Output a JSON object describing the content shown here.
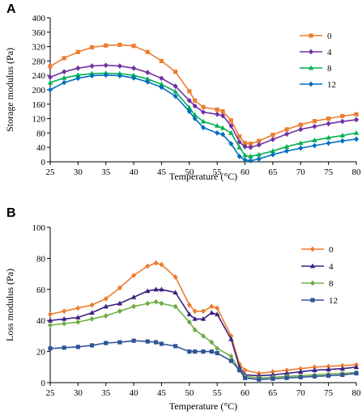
{
  "chart_data": [
    {
      "panel": "A",
      "type": "line",
      "xlabel": "Temperature (°C)",
      "ylabel": "Storage modulus (Pa)",
      "xlim": [
        25,
        80
      ],
      "ylim": [
        0,
        400
      ],
      "xticks": [
        "25",
        "30",
        "35",
        "40",
        "45",
        "50",
        "55",
        "60",
        "65",
        "70",
        "75",
        "80"
      ],
      "yticks": [
        "0",
        "40",
        "80",
        "120",
        "160",
        "200",
        "240",
        "280",
        "320",
        "360",
        "400"
      ],
      "grid": false,
      "legend": "top-right",
      "x": [
        25,
        27.5,
        30,
        32.5,
        35,
        37.5,
        40,
        42.5,
        45,
        47.5,
        50,
        51,
        52.5,
        55,
        56,
        57.5,
        59,
        60,
        61,
        62.5,
        65,
        67.5,
        70,
        72.5,
        75,
        77.5,
        80
      ],
      "series": [
        {
          "name": "0",
          "color": "#ED7D31",
          "marker": "square",
          "values": [
            265,
            288,
            305,
            318,
            323,
            325,
            322,
            305,
            280,
            250,
            196,
            170,
            152,
            145,
            140,
            115,
            70,
            52,
            50,
            58,
            75,
            90,
            103,
            113,
            120,
            127,
            132
          ]
        },
        {
          "name": "4",
          "color": "#7030A0",
          "marker": "diamond",
          "values": [
            235,
            250,
            260,
            266,
            268,
            266,
            260,
            248,
            232,
            210,
            170,
            155,
            138,
            132,
            128,
            100,
            55,
            42,
            40,
            47,
            62,
            77,
            90,
            98,
            106,
            112,
            117
          ]
        },
        {
          "name": "8",
          "color": "#00B050",
          "marker": "triangle",
          "values": [
            220,
            233,
            241,
            245,
            246,
            245,
            240,
            230,
            215,
            195,
            150,
            130,
            112,
            100,
            94,
            80,
            40,
            18,
            15,
            20,
            30,
            42,
            52,
            60,
            67,
            73,
            80
          ]
        },
        {
          "name": "12",
          "color": "#0070C0",
          "marker": "diamond",
          "values": [
            200,
            220,
            232,
            239,
            241,
            239,
            233,
            222,
            207,
            182,
            140,
            120,
            95,
            80,
            76,
            50,
            15,
            5,
            3,
            8,
            20,
            30,
            38,
            45,
            52,
            58,
            63
          ]
        }
      ]
    },
    {
      "panel": "B",
      "type": "line",
      "xlabel": "Temperature (°C)",
      "ylabel": "Loss modulus (Pa)",
      "xlim": [
        25,
        80
      ],
      "ylim": [
        0,
        100
      ],
      "xticks": [
        "25",
        "30",
        "35",
        "40",
        "45",
        "50",
        "55",
        "60",
        "65",
        "70",
        "75",
        "80"
      ],
      "yticks": [
        "0",
        "20",
        "40",
        "60",
        "80",
        "100"
      ],
      "grid": false,
      "legend": "top-right",
      "x": [
        25,
        27.5,
        30,
        32.5,
        35,
        37.5,
        40,
        42.5,
        44,
        45,
        47.5,
        50,
        51,
        52.5,
        54,
        55,
        57.5,
        59,
        60,
        62.5,
        65,
        67.5,
        70,
        72.5,
        75,
        77.5,
        80
      ],
      "series": [
        {
          "name": "0",
          "color": "#ED7D31",
          "marker": "diamond",
          "values": [
            44,
            46,
            48,
            50,
            54,
            61,
            69,
            75,
            77,
            76,
            68,
            50,
            46,
            46,
            49,
            48,
            30,
            12,
            8,
            6,
            7,
            8,
            9,
            10,
            10.5,
            11,
            11.5
          ]
        },
        {
          "name": "4",
          "color": "#3A2080",
          "marker": "triangle",
          "values": [
            40,
            41,
            42,
            45,
            49,
            51,
            55,
            59,
            60,
            60,
            58,
            44,
            41,
            41,
            45,
            44,
            28,
            10,
            5,
            4.5,
            5,
            6,
            7,
            8,
            8.5,
            9,
            10
          ]
        },
        {
          "name": "8",
          "color": "#70AD47",
          "marker": "diamond",
          "values": [
            37,
            38,
            39,
            41,
            43,
            46,
            49,
            51,
            52,
            51,
            49,
            39,
            34,
            30,
            26,
            22,
            17,
            8,
            4,
            3,
            3.5,
            4,
            4.5,
            5,
            5.5,
            6,
            6.5
          ]
        },
        {
          "name": "12",
          "color": "#2F5597",
          "marker": "square",
          "values": [
            22,
            22.5,
            23,
            24,
            25.5,
            26,
            27,
            26.5,
            26,
            25,
            23.5,
            20,
            20,
            20,
            20,
            19,
            14,
            8,
            3,
            2,
            2.5,
            3,
            3.5,
            4,
            4.5,
            5,
            6
          ]
        }
      ]
    }
  ]
}
